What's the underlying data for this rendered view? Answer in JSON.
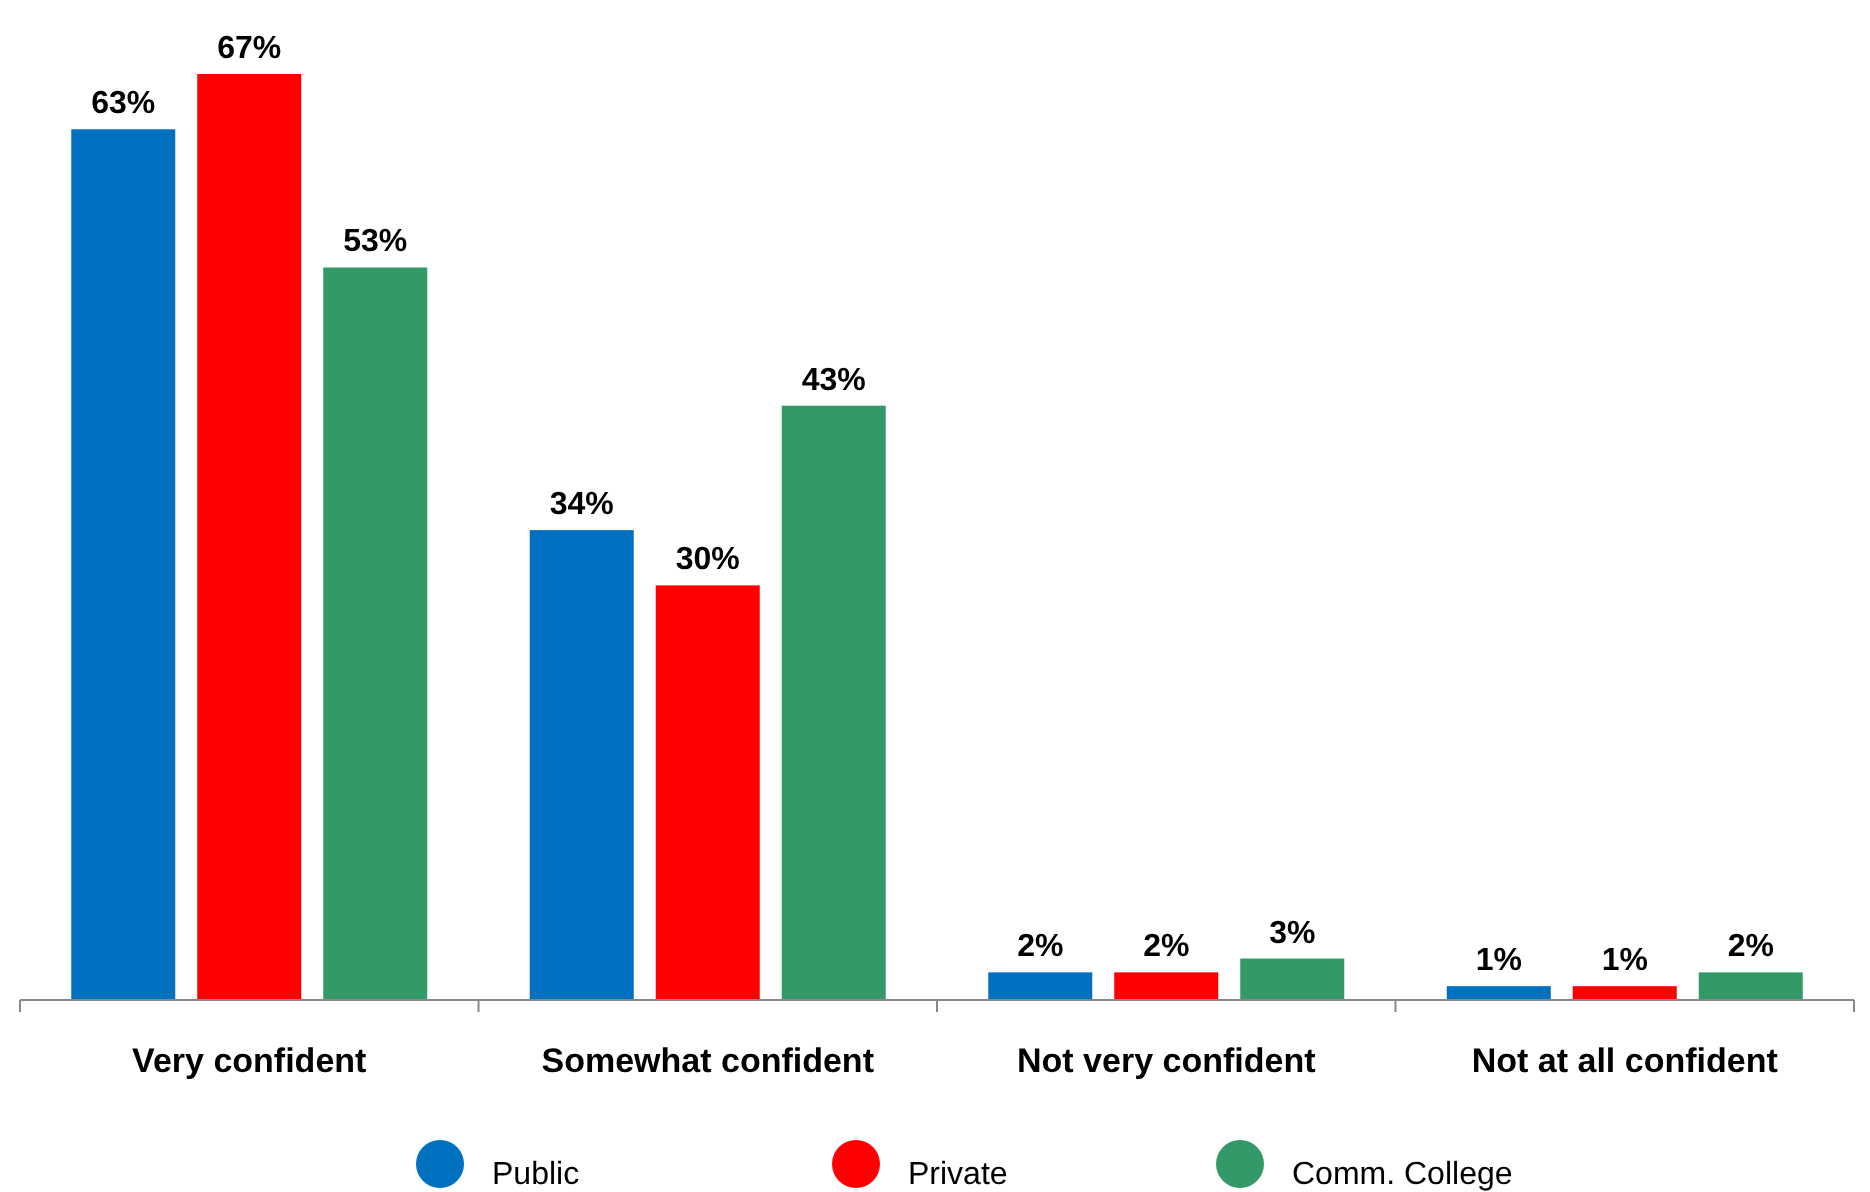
{
  "chart_data": {
    "type": "bar",
    "categories": [
      "Very confident",
      "Somewhat confident",
      "Not very confident",
      "Not at all confident"
    ],
    "series": [
      {
        "name": "Public",
        "color": "#0070c0",
        "values": [
          63,
          34,
          2,
          1
        ],
        "value_labels": [
          "63%",
          "34%",
          "2%",
          "1%"
        ]
      },
      {
        "name": "Private",
        "color": "#ff0000",
        "values": [
          67,
          30,
          2,
          1
        ],
        "value_labels": [
          "67%",
          "30%",
          "2%",
          "1%"
        ]
      },
      {
        "name": "Comm. College",
        "color": "#339966",
        "values": [
          53,
          43,
          3,
          2
        ],
        "value_labels": [
          "53%",
          "43%",
          "3%",
          "2%"
        ]
      }
    ],
    "legend": "bottom"
  }
}
